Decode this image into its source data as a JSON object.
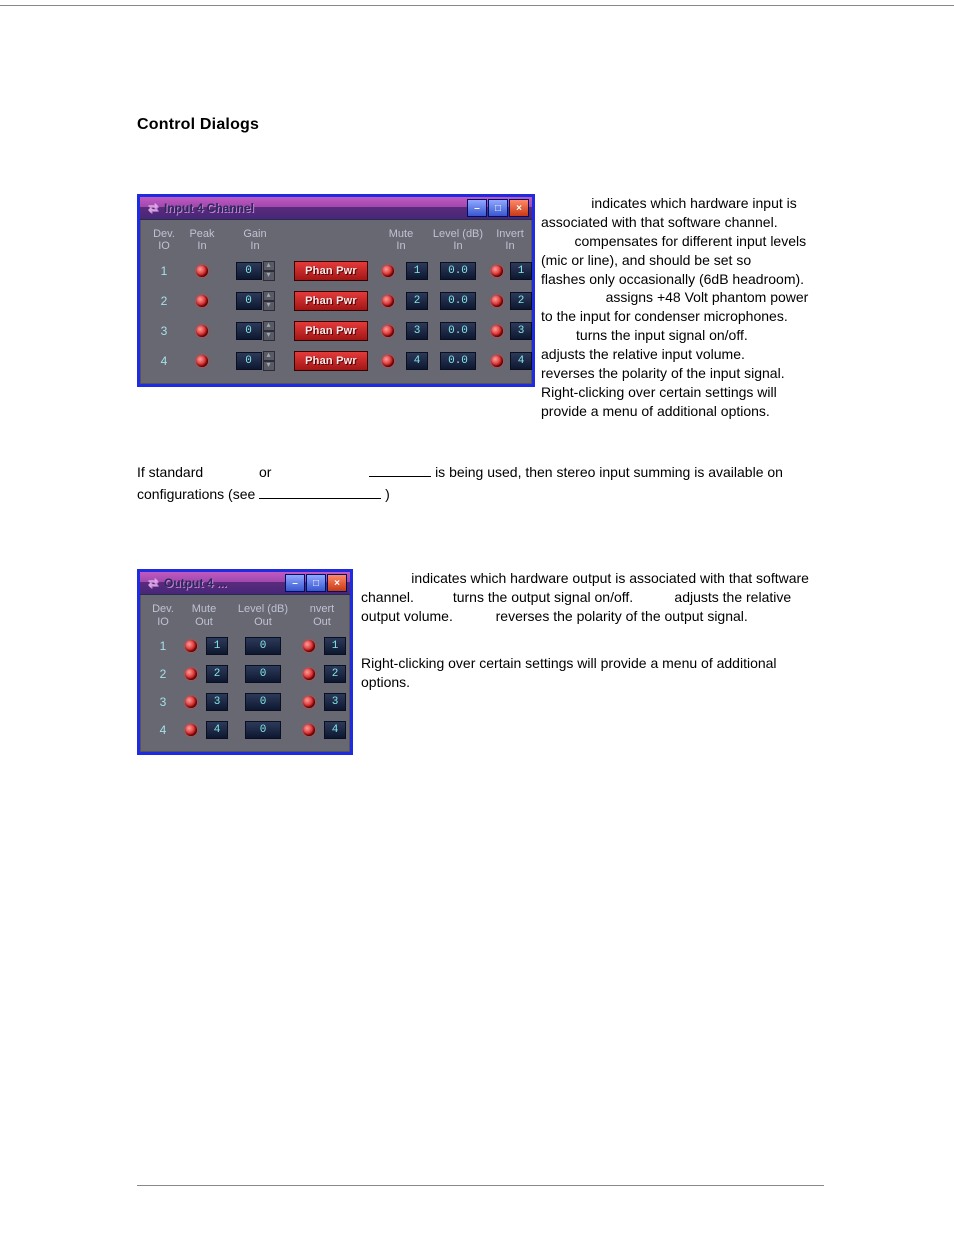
{
  "heading": "Control Dialogs",
  "input_dialog": {
    "title": "Input 4 Channel",
    "titlebar_bg_top": "#bf5abf",
    "titlebar_bg_bottom": "#46277a",
    "border_color": "#1f2be0",
    "body_bg": "#686872",
    "header_color": "#bfc2d4",
    "headers": {
      "dev": "Dev.\nIO",
      "peak": "Peak\nIn",
      "gain": "Gain\nIn",
      "phan": "",
      "mute": "Mute\nIn",
      "level": "Level (dB)\nIn",
      "invert": "Invert\nIn"
    },
    "phan_label": "Phan Pwr",
    "phan_bg": "#c82424",
    "led_color": "#cc1a1a",
    "num_bg": "#17233f",
    "num_fg": "#82e6e6",
    "rows": [
      {
        "dev": "1",
        "gain": "0",
        "mute": "1",
        "level": "0.0",
        "invert": "1"
      },
      {
        "dev": "2",
        "gain": "0",
        "mute": "2",
        "level": "0.0",
        "invert": "2"
      },
      {
        "dev": "3",
        "gain": "0",
        "mute": "3",
        "level": "0.0",
        "invert": "3"
      },
      {
        "dev": "4",
        "gain": "0",
        "mute": "4",
        "level": "0.0",
        "invert": "4"
      }
    ]
  },
  "output_dialog": {
    "title": "Output 4 ...",
    "headers": {
      "dev": "Dev.\nIO",
      "mute": "Mute\nOut",
      "level": "Level (dB)\nOut",
      "invert": "nvert\nOut"
    },
    "rows": [
      {
        "dev": "1",
        "mute": "1",
        "level": "0",
        "invert": "1"
      },
      {
        "dev": "2",
        "mute": "2",
        "level": "0",
        "invert": "2"
      },
      {
        "dev": "3",
        "mute": "3",
        "level": "0",
        "invert": "3"
      },
      {
        "dev": "4",
        "mute": "4",
        "level": "0",
        "invert": "4"
      }
    ]
  },
  "desc_input": {
    "p1a": " indicates which hardware input is associated with that software channel. ",
    "p1b": " compensates for different input levels (mic or line), and should be set so ",
    "p1c": " flashes only occasionally (6dB headroom). ",
    "p1d": " assigns +48 Volt phantom power to the input for condenser microphones. ",
    "p1e": " turns the input signal on/off. ",
    "p1f": " adjusts the relative input volume. ",
    "p1g": " reverses the polarity of the input signal."
  },
  "note_input": "Right-clicking over certain settings will provide a menu of additional options.",
  "stereo_para": {
    "a": "If standard ",
    "b": " or ",
    "c": " is being used, then stereo input summing is available on ",
    "d": " configurations (see ",
    "e": ")"
  },
  "desc_output": {
    "p1a": " indicates which hardware output is associated with that software channel. ",
    "p1b": " turns the output signal on/off. ",
    "p1c": " adjusts the relative output volume. ",
    "p1d": " reverses the polarity of the output signal."
  },
  "note_output": "Right-clicking over certain settings will provide a menu of additional options."
}
